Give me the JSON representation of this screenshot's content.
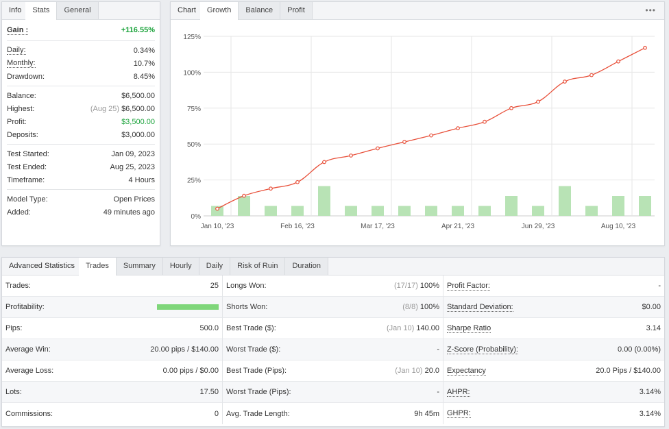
{
  "info_panel": {
    "tabs": [
      "Info",
      "Stats",
      "General"
    ],
    "active_tab": "Stats",
    "gain": {
      "label": "Gain :",
      "value": "+116.55%"
    },
    "group1": [
      {
        "label": "Daily:",
        "value": "0.34%"
      },
      {
        "label": "Monthly:",
        "value": "10.7%"
      },
      {
        "label": "Drawdown:",
        "value": "8.45%"
      }
    ],
    "group2": [
      {
        "label": "Balance:",
        "value": "$6,500.00"
      },
      {
        "label": "Highest:",
        "muted": "(Aug 25)",
        "value": "$6,500.00"
      },
      {
        "label": "Profit:",
        "value": "$3,500.00"
      },
      {
        "label": "Deposits:",
        "value": "$3,000.00"
      }
    ],
    "group3": [
      {
        "label": "Test Started:",
        "value": "Jan 09, 2023"
      },
      {
        "label": "Test Ended:",
        "value": "Aug 25, 2023"
      },
      {
        "label": "Timeframe:",
        "value": "4 Hours"
      }
    ],
    "group4": [
      {
        "label": "Model Type:",
        "value": "Open Prices"
      },
      {
        "label": "Added:",
        "value": "49 minutes ago"
      }
    ]
  },
  "chart_panel": {
    "tabs": [
      "Chart",
      "Growth",
      "Balance",
      "Profit"
    ],
    "active_tab": "Growth",
    "more_icon": "ellipsis-icon",
    "colors": {
      "line": "#e8503a",
      "bar": "#b8e3b5",
      "grid": "#e6e6e6"
    }
  },
  "chart_data": {
    "type": "line",
    "y_tick_labels": [
      "125%",
      "100%",
      "75%",
      "50%",
      "25%",
      "0%"
    ],
    "x_tick_labels": [
      "Jan 10, '23",
      "Feb 16, '23",
      "Mar 17, '23",
      "Apr 21, '23",
      "Jun 29, '23",
      "Aug 10, '23"
    ],
    "ylim": [
      0,
      125
    ],
    "growth_series": {
      "values": [
        5,
        14,
        19,
        23.5,
        37.5,
        42,
        47,
        51.5,
        56,
        61,
        65.5,
        75,
        79.5,
        93.5,
        98,
        107.5,
        117
      ]
    },
    "bar_series": {
      "values": [
        1,
        2,
        1,
        1,
        3,
        1,
        1,
        1,
        1,
        1,
        1,
        2,
        1,
        3,
        1,
        2,
        2
      ]
    }
  },
  "stats_panel": {
    "tabs": [
      "Advanced Statistics",
      "Trades",
      "Summary",
      "Hourly",
      "Daily",
      "Risk of Ruin",
      "Duration"
    ],
    "active_tab": "Trades",
    "col1": [
      {
        "label": "Trades:",
        "value": "25"
      },
      {
        "label": "Profitability:",
        "value": "",
        "bar_fraction": 1.0
      },
      {
        "label": "Pips:",
        "value": "500.0"
      },
      {
        "label": "Average Win:",
        "value": "20.00 pips / $140.00"
      },
      {
        "label": "Average Loss:",
        "value": "0.00 pips / $0.00"
      },
      {
        "label": "Lots:",
        "value": "17.50"
      },
      {
        "label": "Commissions:",
        "value": "0"
      }
    ],
    "col2": [
      {
        "label": "Longs Won:",
        "muted": "(17/17)",
        "value": "100%"
      },
      {
        "label": "Shorts Won:",
        "muted": "(8/8)",
        "value": "100%"
      },
      {
        "label": "Best Trade ($):",
        "muted": "(Jan 10)",
        "value": "140.00"
      },
      {
        "label": "Worst Trade ($):",
        "value": "-"
      },
      {
        "label": "Best Trade (Pips):",
        "muted": "(Jan 10)",
        "value": "20.0"
      },
      {
        "label": "Worst Trade (Pips):",
        "value": "-"
      },
      {
        "label": "Avg. Trade Length:",
        "value": "9h 45m"
      }
    ],
    "col3": [
      {
        "label": "Profit Factor:",
        "value": "-"
      },
      {
        "label": "Standard Deviation:",
        "value": "$0.00"
      },
      {
        "label": "Sharpe Ratio",
        "value": "3.14"
      },
      {
        "label": "Z-Score (Probability):",
        "value": "0.00 (0.00%)"
      },
      {
        "label": "Expectancy",
        "value": "20.0 Pips / $140.00"
      },
      {
        "label": "AHPR:",
        "value": "3.14%"
      },
      {
        "label": "GHPR:",
        "value": "3.14%"
      }
    ]
  }
}
